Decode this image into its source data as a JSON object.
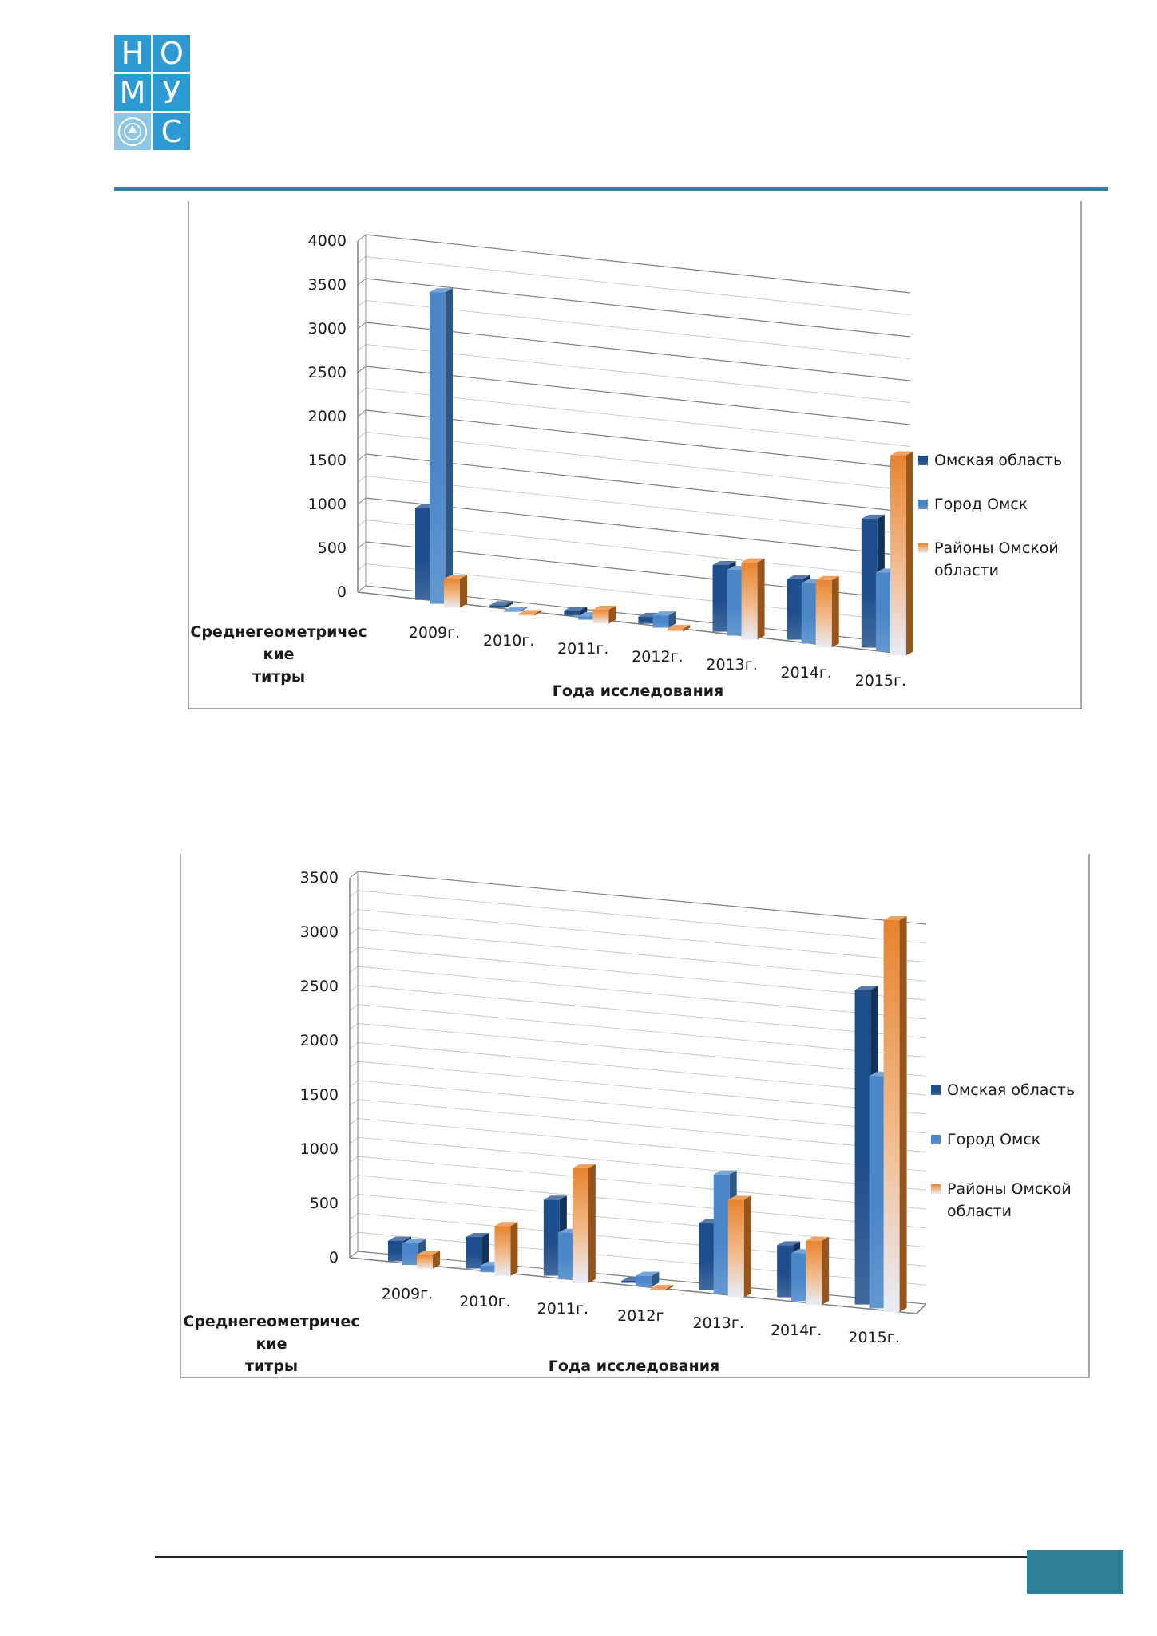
{
  "logo": {
    "letters": [
      "Н",
      "О",
      "М",
      "У",
      "",
      "С"
    ]
  },
  "chart_data": [
    {
      "type": "bar",
      "categories": [
        "2009г.",
        "2010г.",
        "2011г.",
        "2012г.",
        "2013г.",
        "2014г.",
        "2015г."
      ],
      "series": [
        {
          "name": "Омская область",
          "values": [
            1050,
            30,
            60,
            80,
            760,
            690,
            1470
          ]
        },
        {
          "name": "Город Омск",
          "values": [
            3550,
            10,
            40,
            140,
            750,
            690,
            900
          ]
        },
        {
          "name": "Районы Омской области",
          "values": [
            330,
            20,
            160,
            30,
            880,
            770,
            2280
          ]
        }
      ],
      "ylim": [
        0,
        4000
      ],
      "yticks": [
        "0",
        "500",
        "1000",
        "1500",
        "2000",
        "2500",
        "3000",
        "3500",
        "4000"
      ],
      "xlabel": "Года исследования",
      "ylabel": "Среднегеометрические титры",
      "ylabel_lines": [
        "Среднегеометричес",
        "кие",
        "титры"
      ],
      "legend": "right",
      "grid": true,
      "colors": [
        "#1f4e8c",
        "#4a86c8",
        "#e8832e"
      ]
    },
    {
      "type": "bar",
      "categories": [
        "2009г.",
        "2010г.",
        "2011г.",
        "2012г",
        "2013г.",
        "2014г.",
        "2015г."
      ],
      "series": [
        {
          "name": "Омская область",
          "values": [
            190,
            290,
            700,
            20,
            620,
            480,
            2900
          ]
        },
        {
          "name": "Город Омск",
          "values": [
            200,
            60,
            430,
            100,
            1100,
            440,
            2140
          ]
        },
        {
          "name": "Районы Омской области",
          "values": [
            130,
            460,
            1060,
            15,
            900,
            590,
            3610
          ]
        }
      ],
      "ylim": [
        0,
        3500
      ],
      "yticks": [
        "0",
        "500",
        "1000",
        "1500",
        "2000",
        "2500",
        "3000",
        "3500"
      ],
      "xlabel": "Года исследования",
      "ylabel": "Среднегеометрические титры",
      "ylabel_lines": [
        "Среднегеометричес",
        "кие",
        "титры"
      ],
      "legend": "right",
      "grid": true,
      "colors": [
        "#1f4e8c",
        "#4a86c8",
        "#e8832e"
      ]
    }
  ]
}
